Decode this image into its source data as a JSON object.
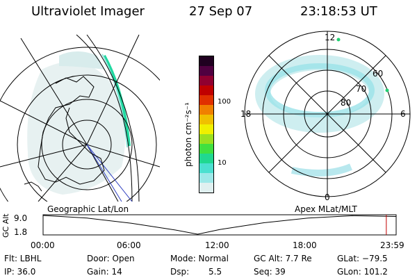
{
  "header": {
    "instrument": "Ultraviolet Imager",
    "date": "27 Sep 07",
    "time": "23:18:53 UT"
  },
  "colorbar": {
    "unit_label": "photon cm⁻²s⁻¹",
    "ticks": [
      "100",
      "10"
    ],
    "scale": "log",
    "colors": [
      "#e0f0f0",
      "#9de8e8",
      "#4be0d0",
      "#20d890",
      "#40e040",
      "#9be020",
      "#f0f000",
      "#f0c000",
      "#f08000",
      "#e03000",
      "#c00000",
      "#900030",
      "#500040",
      "#200020"
    ]
  },
  "polar_plot": {
    "lat_labels": [
      "80",
      "70",
      "60"
    ],
    "mlt_labels": {
      "top": "12",
      "left": "18",
      "right": "6",
      "bottom": "0"
    }
  },
  "timeline": {
    "left_label": "Geographic Lat/Lon",
    "right_label": "Apex MLat/MLT",
    "y_axis_label": "GC Alt",
    "y_ticks": [
      "9.0",
      "1.8"
    ],
    "x_ticks": [
      "00:00",
      "06:00",
      "12:00",
      "18:00",
      "23:59"
    ]
  },
  "chart_data": {
    "type": "line",
    "title": "",
    "xlabel": "",
    "ylabel": "GC Alt",
    "x": [
      "00:00",
      "03:00",
      "06:00",
      "09:00",
      "10:30",
      "12:00",
      "15:00",
      "18:00",
      "21:00",
      "23:59"
    ],
    "values": [
      9.0,
      8.0,
      6.0,
      3.4,
      1.8,
      3.6,
      6.2,
      8.0,
      8.9,
      8.6
    ],
    "ylim": [
      1.8,
      9.0
    ],
    "current_time": "23:18:53"
  },
  "status": {
    "filter": "Flt: LBHL",
    "door": "Door: Open",
    "mode": "Mode: Normal",
    "gc_alt": "GC Alt: 7.7 Re",
    "glat": "GLat: −79.5",
    "ip": "IP: 36.0",
    "gain": "Gain: 14",
    "dsp_label": "Dsp:",
    "dsp_value": "5.5",
    "seq": "Seq: 39",
    "glon": "GLon: 101.2"
  }
}
